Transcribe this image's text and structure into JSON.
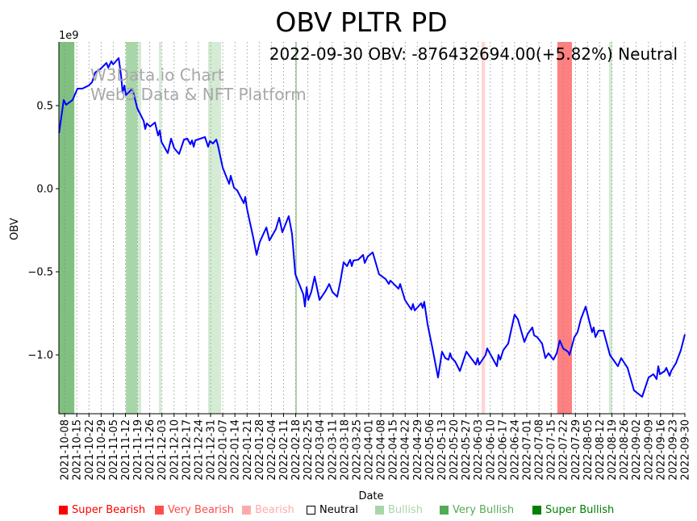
{
  "chart_data": {
    "type": "line",
    "title": "OBV PLTR PD",
    "annotation": "2022-09-30 OBV: -876432694.00(+5.82%) Neutral",
    "watermark": [
      "W3Data.io Chart",
      "Web3 Data & NFT Platform"
    ],
    "xlabel": "Date",
    "ylabel": "OBV",
    "y_offset_label": "1e9",
    "x_origin_date": "2021-10-08",
    "x_units": "days since 2021-10-08",
    "xlim": [
      -3.3,
      357
    ],
    "ylim": [
      -1.354,
      0.883
    ],
    "y_scale": 1000000000,
    "yticks": [
      0.5,
      0.0,
      -0.5,
      -1.0
    ],
    "ytick_labels": [
      "0.5",
      "0.0",
      "−0.5",
      "−1.0"
    ],
    "xtick_labels": [
      "2021-10-08",
      "2021-10-15",
      "2021-10-22",
      "2021-10-29",
      "2021-11-05",
      "2021-11-12",
      "2021-11-19",
      "2021-11-26",
      "2021-12-03",
      "2021-12-10",
      "2021-12-17",
      "2021-12-24",
      "2021-12-31",
      "2022-01-07",
      "2022-01-14",
      "2022-01-21",
      "2022-01-28",
      "2022-02-04",
      "2022-02-11",
      "2022-02-18",
      "2022-02-25",
      "2022-03-04",
      "2022-03-11",
      "2022-03-18",
      "2022-03-25",
      "2022-04-01",
      "2022-04-08",
      "2022-04-15",
      "2022-04-22",
      "2022-04-29",
      "2022-05-06",
      "2022-05-13",
      "2022-05-20",
      "2022-05-27",
      "2022-06-03",
      "2022-06-10",
      "2022-06-17",
      "2022-06-24",
      "2022-07-01",
      "2022-07-08",
      "2022-07-15",
      "2022-07-22",
      "2022-07-29",
      "2022-08-05",
      "2022-08-12",
      "2022-08-19",
      "2022-08-26",
      "2022-09-02",
      "2022-09-09",
      "2022-09-16",
      "2022-09-23",
      "2022-09-30"
    ],
    "grid": "vertical dotted at x ticks",
    "line_color": "#0000ff",
    "series": [
      {
        "name": "OBV",
        "points": [
          [
            -3.2,
            0.335
          ],
          [
            -0.5,
            0.534
          ],
          [
            0.9,
            0.505
          ],
          [
            4.6,
            0.534
          ],
          [
            7.4,
            0.602
          ],
          [
            10.2,
            0.602
          ],
          [
            12.1,
            0.612
          ],
          [
            13.9,
            0.621
          ],
          [
            15.8,
            0.641
          ],
          [
            17.6,
            0.699
          ],
          [
            20.4,
            0.718
          ],
          [
            24.1,
            0.757
          ],
          [
            25.1,
            0.728
          ],
          [
            26.9,
            0.767
          ],
          [
            27.9,
            0.748
          ],
          [
            31.1,
            0.786
          ],
          [
            32.5,
            0.68
          ],
          [
            33.4,
            0.578
          ],
          [
            34.4,
            0.621
          ],
          [
            35.3,
            0.563
          ],
          [
            39.0,
            0.602
          ],
          [
            41.8,
            0.485
          ],
          [
            45.5,
            0.408
          ],
          [
            46.4,
            0.359
          ],
          [
            47.3,
            0.393
          ],
          [
            49.2,
            0.374
          ],
          [
            52.0,
            0.398
          ],
          [
            53.8,
            0.32
          ],
          [
            54.8,
            0.35
          ],
          [
            55.7,
            0.282
          ],
          [
            59.4,
            0.214
          ],
          [
            61.3,
            0.301
          ],
          [
            63.1,
            0.243
          ],
          [
            65.9,
            0.209
          ],
          [
            68.7,
            0.296
          ],
          [
            70.6,
            0.301
          ],
          [
            72.4,
            0.267
          ],
          [
            73.3,
            0.291
          ],
          [
            74.3,
            0.252
          ],
          [
            75.2,
            0.291
          ],
          [
            80.8,
            0.311
          ],
          [
            82.6,
            0.252
          ],
          [
            83.6,
            0.286
          ],
          [
            85.4,
            0.272
          ],
          [
            87.3,
            0.296
          ],
          [
            88.2,
            0.262
          ],
          [
            91.0,
            0.126
          ],
          [
            93.8,
            0.053
          ],
          [
            94.7,
            0.029
          ],
          [
            95.6,
            0.078
          ],
          [
            97.5,
            0.005
          ],
          [
            99.3,
            -0.01
          ],
          [
            103.1,
            -0.087
          ],
          [
            104.0,
            -0.049
          ],
          [
            104.9,
            -0.117
          ],
          [
            108.6,
            -0.296
          ],
          [
            110.5,
            -0.398
          ],
          [
            112.3,
            -0.32
          ],
          [
            116.1,
            -0.233
          ],
          [
            117.9,
            -0.311
          ],
          [
            121.6,
            -0.243
          ],
          [
            123.5,
            -0.175
          ],
          [
            125.3,
            -0.262
          ],
          [
            129.0,
            -0.165
          ],
          [
            130.9,
            -0.272
          ],
          [
            132.8,
            -0.515
          ],
          [
            134.6,
            -0.563
          ],
          [
            137.4,
            -0.636
          ],
          [
            138.3,
            -0.709
          ],
          [
            139.3,
            -0.592
          ],
          [
            140.2,
            -0.67
          ],
          [
            142.0,
            -0.621
          ],
          [
            143.9,
            -0.529
          ],
          [
            146.7,
            -0.67
          ],
          [
            150.4,
            -0.612
          ],
          [
            152.3,
            -0.573
          ],
          [
            154.1,
            -0.621
          ],
          [
            156.9,
            -0.65
          ],
          [
            158.8,
            -0.553
          ],
          [
            160.6,
            -0.442
          ],
          [
            162.5,
            -0.466
          ],
          [
            164.3,
            -0.427
          ],
          [
            165.3,
            -0.466
          ],
          [
            166.2,
            -0.432
          ],
          [
            169.0,
            -0.427
          ],
          [
            171.8,
            -0.398
          ],
          [
            172.7,
            -0.447
          ],
          [
            174.5,
            -0.408
          ],
          [
            177.3,
            -0.383
          ],
          [
            181.0,
            -0.515
          ],
          [
            184.8,
            -0.544
          ],
          [
            186.6,
            -0.573
          ],
          [
            187.5,
            -0.553
          ],
          [
            192.2,
            -0.602
          ],
          [
            193.1,
            -0.573
          ],
          [
            195.9,
            -0.67
          ],
          [
            199.6,
            -0.728
          ],
          [
            200.5,
            -0.694
          ],
          [
            201.5,
            -0.733
          ],
          [
            205.2,
            -0.689
          ],
          [
            206.1,
            -0.718
          ],
          [
            207.0,
            -0.68
          ],
          [
            208.9,
            -0.815
          ],
          [
            211.7,
            -0.961
          ],
          [
            214.9,
            -1.136
          ],
          [
            217.2,
            -0.981
          ],
          [
            219.1,
            -1.019
          ],
          [
            220.9,
            -1.029
          ],
          [
            221.9,
            -0.99
          ],
          [
            222.8,
            -1.019
          ],
          [
            224.7,
            -1.039
          ],
          [
            227.5,
            -1.097
          ],
          [
            231.2,
            -0.981
          ],
          [
            236.7,
            -1.058
          ],
          [
            237.7,
            -1.019
          ],
          [
            238.6,
            -1.058
          ],
          [
            242.3,
            -1.0
          ],
          [
            243.2,
            -0.961
          ],
          [
            248.8,
            -1.068
          ],
          [
            249.7,
            -1.0
          ],
          [
            250.7,
            -1.029
          ],
          [
            252.5,
            -0.971
          ],
          [
            255.3,
            -0.932
          ],
          [
            259.0,
            -0.757
          ],
          [
            260.9,
            -0.786
          ],
          [
            264.6,
            -0.922
          ],
          [
            266.5,
            -0.874
          ],
          [
            269.2,
            -0.835
          ],
          [
            270.2,
            -0.883
          ],
          [
            272.0,
            -0.893
          ],
          [
            274.8,
            -0.932
          ],
          [
            276.7,
            -1.019
          ],
          [
            278.5,
            -0.99
          ],
          [
            281.3,
            -1.029
          ],
          [
            283.2,
            -0.99
          ],
          [
            285.0,
            -0.913
          ],
          [
            286.9,
            -0.961
          ],
          [
            289.7,
            -0.981
          ],
          [
            290.6,
            -1.0
          ],
          [
            293.4,
            -0.893
          ],
          [
            295.2,
            -0.864
          ],
          [
            297.1,
            -0.786
          ],
          [
            299.9,
            -0.709
          ],
          [
            301.7,
            -0.786
          ],
          [
            303.6,
            -0.864
          ],
          [
            304.5,
            -0.835
          ],
          [
            305.5,
            -0.893
          ],
          [
            307.3,
            -0.854
          ],
          [
            310.1,
            -0.854
          ],
          [
            313.8,
            -1.0
          ],
          [
            318.4,
            -1.068
          ],
          [
            320.3,
            -1.019
          ],
          [
            324.0,
            -1.078
          ],
          [
            327.7,
            -1.214
          ],
          [
            332.4,
            -1.252
          ],
          [
            336.1,
            -1.136
          ],
          [
            338.9,
            -1.116
          ],
          [
            340.7,
            -1.146
          ],
          [
            341.7,
            -1.068
          ],
          [
            342.6,
            -1.116
          ],
          [
            345.4,
            -1.097
          ],
          [
            346.3,
            -1.078
          ],
          [
            348.2,
            -1.126
          ],
          [
            349.1,
            -1.097
          ],
          [
            351.9,
            -1.049
          ],
          [
            354.7,
            -0.971
          ],
          [
            357.0,
            -0.876
          ]
        ]
      }
    ],
    "bands": [
      {
        "signal": "Very Bullish",
        "from": -3.3,
        "to": 5.6,
        "color": "#80c080"
      },
      {
        "signal": "Bullish",
        "from": 35.3,
        "to": 41.8,
        "color": "#a9d6a9"
      },
      {
        "signal": "Bullish (weak)",
        "from": 41.8,
        "to": 44.1,
        "color": "#d4ebd4"
      },
      {
        "signal": "Bullish (weak)",
        "from": 54.3,
        "to": 55.7,
        "color": "#d4ebd4"
      },
      {
        "signal": "Bullish (weak)",
        "from": 82.6,
        "to": 90.0,
        "color": "#d4ebd4"
      },
      {
        "signal": "Bullish",
        "from": 132.8,
        "to": 133.7,
        "color": "#a9d6a9"
      },
      {
        "signal": "Bearish",
        "from": 240.0,
        "to": 242.0,
        "color": "#ffd5d5"
      },
      {
        "signal": "Very Bearish",
        "from": 283.6,
        "to": 292.0,
        "color": "#ff8080"
      },
      {
        "signal": "Bullish (weak)",
        "from": 313.3,
        "to": 315.2,
        "color": "#d4ebd4"
      }
    ],
    "legend": [
      {
        "label": "Super Bearish",
        "color": "#ff0000"
      },
      {
        "label": "Very Bearish",
        "color": "#ff4d4d"
      },
      {
        "label": "Bearish",
        "color": "#ffaaaa"
      },
      {
        "label": "Neutral",
        "color": "#000000",
        "hollow": true
      },
      {
        "label": "Bullish",
        "color": "#a9d6a9"
      },
      {
        "label": "Very Bullish",
        "color": "#55aa55"
      },
      {
        "label": "Super Bullish",
        "color": "#008000"
      }
    ],
    "legend_placement": "bottom"
  }
}
